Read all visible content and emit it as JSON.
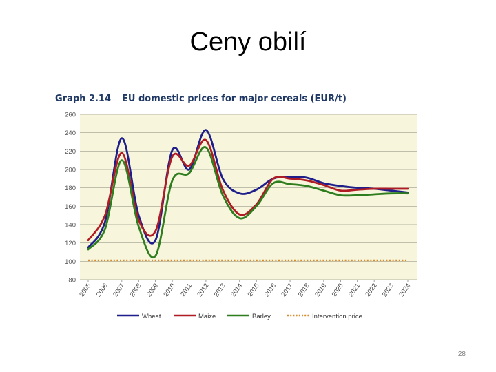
{
  "slide": {
    "title": "Ceny obilí",
    "page_number": "28"
  },
  "chart_data": {
    "type": "line",
    "caption_number": "Graph 2.14",
    "title": "EU domestic prices for major cereals (EUR/t)",
    "xlabel": "",
    "ylabel": "",
    "ylim": [
      80,
      260
    ],
    "yticks": [
      80,
      100,
      120,
      140,
      160,
      180,
      200,
      220,
      240,
      260
    ],
    "grid": true,
    "legend_position": "bottom",
    "background_color": "#f7f6dc",
    "x": [
      "2005",
      "2006",
      "2007",
      "2008",
      "2009",
      "2010",
      "2011",
      "2012",
      "2013",
      "2014",
      "2015",
      "2016",
      "2017",
      "2018",
      "2019",
      "2020",
      "2021",
      "2022",
      "2023",
      "2024"
    ],
    "series": [
      {
        "name": "Wheat",
        "color": "#1f1f8c",
        "style": "solid",
        "values": [
          115,
          143,
          234,
          150,
          123,
          221,
          200,
          243,
          190,
          174,
          178,
          190,
          192,
          191,
          185,
          182,
          180,
          179,
          177,
          175
        ]
      },
      {
        "name": "Maize",
        "color": "#b01c24",
        "style": "solid",
        "values": [
          123,
          150,
          218,
          145,
          133,
          214,
          204,
          232,
          178,
          151,
          162,
          190,
          190,
          188,
          183,
          177,
          178,
          179,
          179,
          179
        ]
      },
      {
        "name": "Barley",
        "color": "#2e7d1e",
        "style": "solid",
        "values": [
          113,
          135,
          210,
          138,
          106,
          188,
          196,
          224,
          172,
          147,
          160,
          185,
          184,
          182,
          177,
          172,
          172,
          173,
          174,
          174
        ]
      },
      {
        "name": "Intervention price",
        "color": "#d98a2b",
        "style": "dotted",
        "values": [
          101,
          101,
          101,
          101,
          101,
          101,
          101,
          101,
          101,
          101,
          101,
          101,
          101,
          101,
          101,
          101,
          101,
          101,
          101,
          101
        ]
      }
    ]
  }
}
